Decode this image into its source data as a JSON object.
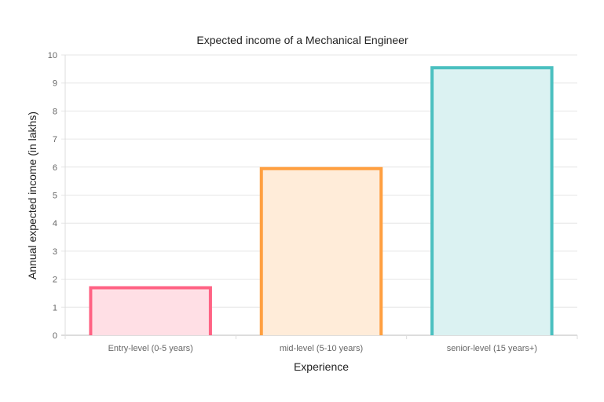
{
  "chart_data": {
    "type": "bar",
    "title": "Expected income of a Mechanical Engineer",
    "xlabel": "Experience",
    "ylabel": "Annual expected income (in lakhs)",
    "categories": [
      "Entry-level (0-5 years)",
      "mid-level (5-10 years)",
      "senior-level (15 years+)"
    ],
    "values": [
      1.75,
      6,
      9.6
    ],
    "ylim": [
      0,
      10
    ],
    "yticks": [
      0,
      1,
      2,
      3,
      4,
      5,
      6,
      7,
      8,
      9,
      10
    ],
    "grid": true,
    "legend": "none",
    "border_colors": [
      "#ff6384",
      "#ff9f40",
      "#4bc0c0"
    ],
    "fill_colors": [
      "#ffdfe5",
      "#ffecd9",
      "#dbf2f2"
    ]
  }
}
